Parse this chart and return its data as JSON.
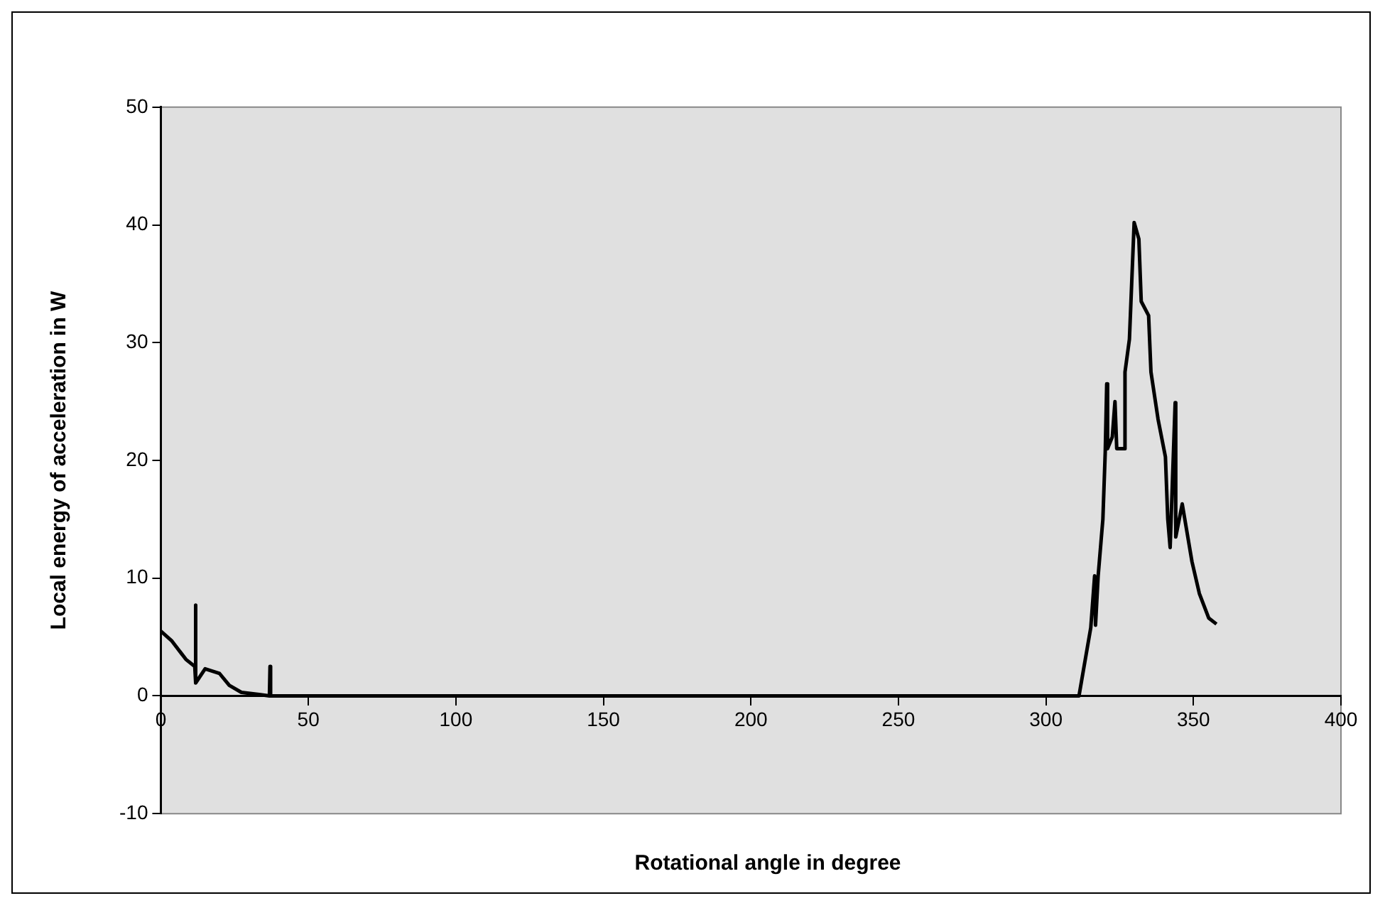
{
  "chart_data": {
    "type": "line",
    "xlabel": "Rotational angle in degree",
    "ylabel": "Local energy of acceleration in W",
    "series": [
      {
        "color": "#000000",
        "x": [
          0,
          3.6,
          8.5,
          11.5,
          11.7,
          11.9,
          15,
          19.9,
          23.2,
          27.3,
          33.8,
          36.8,
          37,
          37.2,
          40,
          100,
          200,
          300,
          311.2,
          315.2,
          316.5,
          316.8,
          317.7,
          319.3,
          320.1,
          320.6,
          320.9,
          322.5,
          323.4,
          324,
          326.6,
          326.8,
          328.3,
          329.9,
          331.5,
          332.3,
          334.8,
          335.6,
          338,
          340.5,
          341.3,
          342.1,
          343.8,
          344,
          346.2,
          349.5,
          352,
          355.2,
          357.8
        ],
        "values": [
          5.5,
          4.7,
          3.1,
          2.5,
          7.7,
          1.1,
          2.3,
          1.9,
          0.9,
          0.3,
          0.1,
          0,
          2.5,
          0,
          0,
          0,
          0,
          0,
          0,
          5.8,
          10.2,
          6,
          10.2,
          15,
          20.7,
          26.5,
          21,
          22,
          25,
          21,
          21,
          27.5,
          30.3,
          40.2,
          38.8,
          33.5,
          32.3,
          27.5,
          23.5,
          20.3,
          15,
          12.6,
          24.9,
          13.5,
          16.3,
          11.4,
          8.7,
          6.6,
          6.1
        ]
      }
    ],
    "xlim": [
      0,
      400
    ],
    "xticks": [
      0,
      50,
      100,
      150,
      200,
      250,
      300,
      350,
      400
    ],
    "ylim": [
      -10,
      50
    ],
    "yticks": [
      -10,
      0,
      10,
      20,
      30,
      40,
      50
    ],
    "legend": false,
    "marker": "none",
    "line_style": "solid"
  }
}
